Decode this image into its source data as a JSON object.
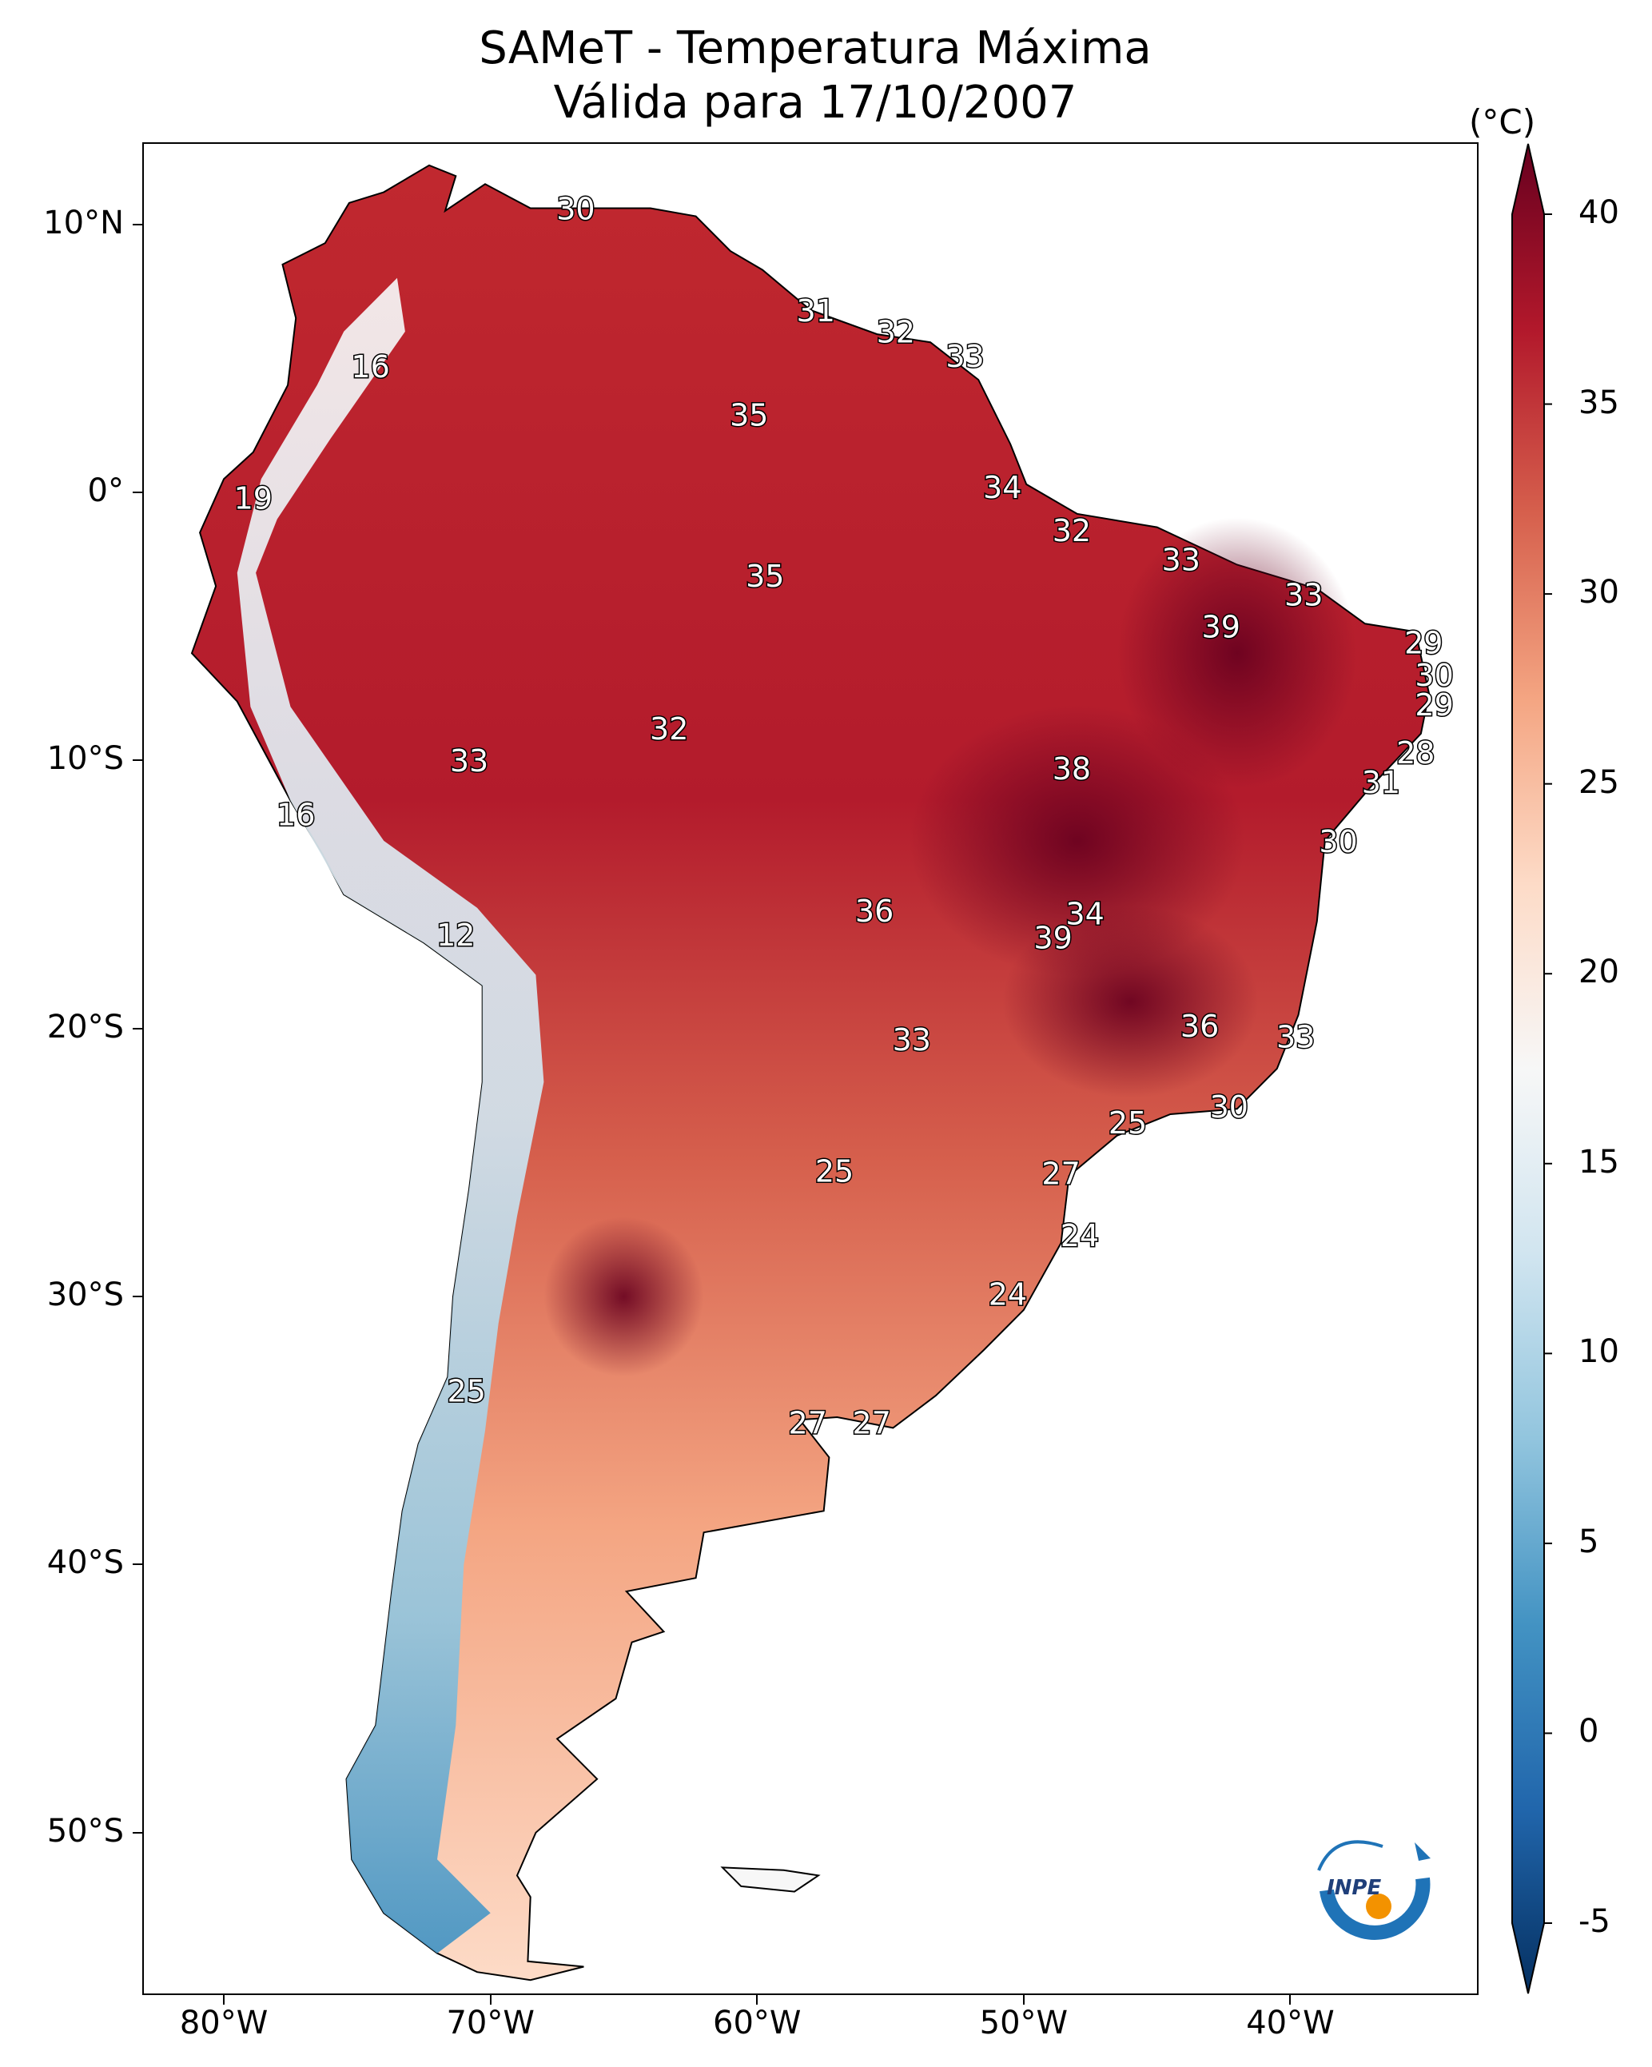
{
  "title": {
    "line1": "SAMeT - Temperatura Máxima",
    "line2": "Válida para 17/10/2007"
  },
  "axes": {
    "lat_ticks": [
      "10°N",
      "0°",
      "10°S",
      "20°S",
      "30°S",
      "40°S",
      "50°S"
    ],
    "lon_ticks": [
      "80°W",
      "70°W",
      "60°W",
      "50°W",
      "40°W"
    ]
  },
  "colorbar": {
    "unit": "(°C)",
    "min": -5,
    "max": 40,
    "ticks": [
      "40",
      "35",
      "30",
      "25",
      "20",
      "15",
      "10",
      "5",
      "0",
      "-5"
    ],
    "colors": [
      "#053061",
      "#2166ac",
      "#4393c3",
      "#92c5de",
      "#d1e5f0",
      "#f7f7f7",
      "#fddbc7",
      "#f4a582",
      "#d6604d",
      "#b2182b",
      "#67001f"
    ]
  },
  "map": {
    "projection": "PlateCarree",
    "lon_range": [
      -83,
      -33
    ],
    "lat_range": [
      -56,
      13
    ],
    "labels": [
      {
        "value": "30",
        "lon": -66.8,
        "lat": 10.5
      },
      {
        "value": "31",
        "lon": -57.8,
        "lat": 6.7
      },
      {
        "value": "32",
        "lon": -54.8,
        "lat": 5.9
      },
      {
        "value": "33",
        "lon": -52.2,
        "lat": 5.0
      },
      {
        "value": "16",
        "lon": -74.5,
        "lat": 4.6
      },
      {
        "value": "35",
        "lon": -60.3,
        "lat": 2.8
      },
      {
        "value": "34",
        "lon": -50.8,
        "lat": 0.1
      },
      {
        "value": "19",
        "lon": -78.9,
        "lat": -0.3
      },
      {
        "value": "32",
        "lon": -48.2,
        "lat": -1.5
      },
      {
        "value": "33",
        "lon": -44.1,
        "lat": -2.6
      },
      {
        "value": "35",
        "lon": -59.7,
        "lat": -3.2
      },
      {
        "value": "33",
        "lon": -39.5,
        "lat": -3.9
      },
      {
        "value": "39",
        "lon": -42.6,
        "lat": -5.1
      },
      {
        "value": "29",
        "lon": -35.0,
        "lat": -5.7
      },
      {
        "value": "30",
        "lon": -34.6,
        "lat": -6.9
      },
      {
        "value": "29",
        "lon": -34.6,
        "lat": -8.0
      },
      {
        "value": "32",
        "lon": -63.3,
        "lat": -8.9
      },
      {
        "value": "28",
        "lon": -35.3,
        "lat": -9.8
      },
      {
        "value": "33",
        "lon": -70.8,
        "lat": -10.1
      },
      {
        "value": "38",
        "lon": -48.2,
        "lat": -10.4
      },
      {
        "value": "31",
        "lon": -36.6,
        "lat": -10.9
      },
      {
        "value": "16",
        "lon": -77.3,
        "lat": -12.1
      },
      {
        "value": "30",
        "lon": -38.2,
        "lat": -13.1
      },
      {
        "value": "36",
        "lon": -55.6,
        "lat": -15.7
      },
      {
        "value": "34",
        "lon": -47.7,
        "lat": -15.8
      },
      {
        "value": "39",
        "lon": -48.9,
        "lat": -16.7
      },
      {
        "value": "12",
        "lon": -71.3,
        "lat": -16.6
      },
      {
        "value": "36",
        "lon": -43.4,
        "lat": -20.0
      },
      {
        "value": "33",
        "lon": -39.8,
        "lat": -20.4
      },
      {
        "value": "33",
        "lon": -54.2,
        "lat": -20.5
      },
      {
        "value": "30",
        "lon": -42.3,
        "lat": -23.0
      },
      {
        "value": "25",
        "lon": -46.1,
        "lat": -23.6
      },
      {
        "value": "25",
        "lon": -57.1,
        "lat": -25.4
      },
      {
        "value": "27",
        "lon": -48.6,
        "lat": -25.5
      },
      {
        "value": "24",
        "lon": -47.9,
        "lat": -27.8
      },
      {
        "value": "24",
        "lon": -50.6,
        "lat": -30.0
      },
      {
        "value": "25",
        "lon": -70.9,
        "lat": -33.6
      },
      {
        "value": "27",
        "lon": -58.1,
        "lat": -34.8
      },
      {
        "value": "27",
        "lon": -55.7,
        "lat": -34.8
      }
    ]
  },
  "logo": {
    "text": "INPE"
  }
}
